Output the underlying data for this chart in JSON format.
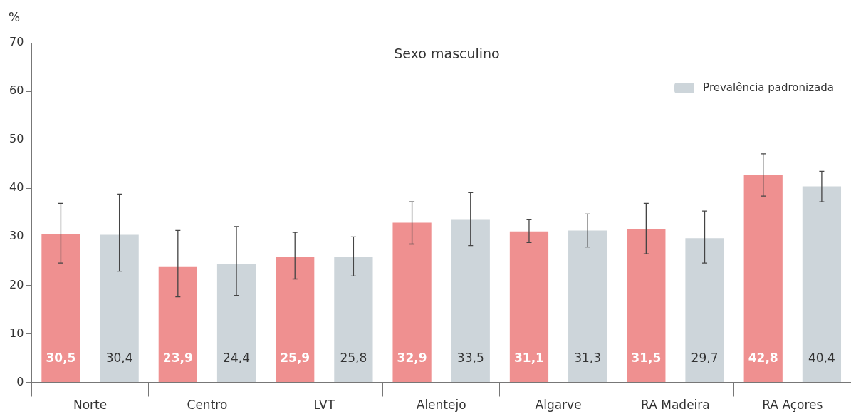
{
  "chart_data": {
    "type": "bar",
    "title": "Sexo masculino",
    "ylabel": "%",
    "categories": [
      "Norte",
      "Centro",
      "LVT",
      "Alentejo",
      "Algarve",
      "RA Madeira",
      "RA Açores"
    ],
    "series": [
      {
        "color": "#ef9090",
        "values": [
          30.5,
          23.9,
          25.9,
          32.9,
          31.1,
          31.5,
          42.8
        ],
        "value_labels": [
          "30,5",
          "23,9",
          "25,9",
          "32,9",
          "31,1",
          "31,5",
          "42,8"
        ],
        "errors": [
          [
            24.6,
            36.9
          ],
          [
            17.6,
            31.3
          ],
          [
            21.3,
            30.9
          ],
          [
            28.5,
            37.2
          ],
          [
            28.8,
            33.5
          ],
          [
            26.5,
            36.9
          ],
          [
            38.4,
            47.1
          ]
        ]
      },
      {
        "name": "Prevalência padronizada",
        "color": "#cdd5da",
        "values": [
          30.4,
          24.4,
          25.8,
          33.5,
          31.3,
          29.7,
          40.4
        ],
        "value_labels": [
          "30,4",
          "24,4",
          "25,8",
          "33,5",
          "31,3",
          "29,7",
          "40,4"
        ],
        "errors": [
          [
            22.9,
            38.8
          ],
          [
            17.9,
            32.1
          ],
          [
            21.9,
            30.0
          ],
          [
            28.2,
            39.1
          ],
          [
            27.9,
            34.7
          ],
          [
            24.6,
            35.3
          ],
          [
            37.2,
            43.5
          ]
        ]
      }
    ],
    "ylim": [
      0,
      70
    ],
    "yticks": [
      0,
      10,
      20,
      30,
      40,
      50,
      60,
      70
    ],
    "grid": false,
    "legend": "top right"
  }
}
